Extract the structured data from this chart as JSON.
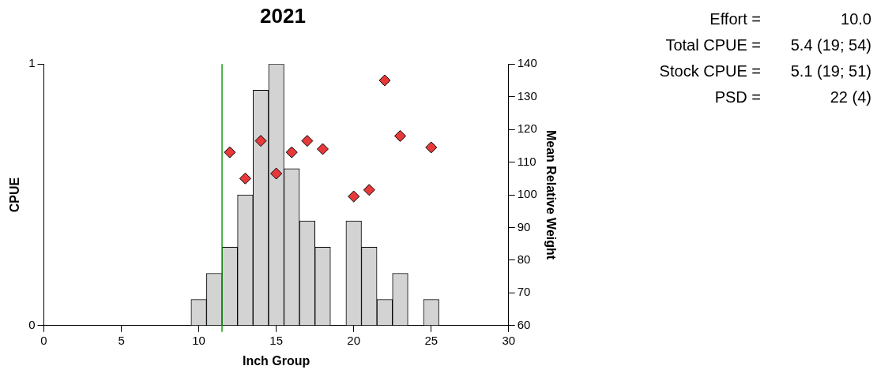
{
  "chart_data": {
    "type": "histogram",
    "title": "2021",
    "xlabel": "Inch Group",
    "ylabel": "CPUE",
    "y2label": "Mean Relative Weight",
    "bins": [
      9.5,
      10.5,
      11.5,
      12.5,
      13.5,
      14.5,
      15.5,
      16.5,
      17.5,
      18.5,
      19.5,
      20.5,
      21.5,
      22.5,
      23.5,
      24.5,
      25.5
    ],
    "series": [
      {
        "color": "#d3d3d3",
        "values": [
          0.1,
          0.2,
          0.3,
          0.5,
          0.9,
          1.0,
          0.6,
          0.4,
          0.3,
          0,
          0.4,
          0.3,
          0.1,
          0.2,
          0,
          0.1
        ]
      },
      {
        "type": "scatter",
        "axis": "y2",
        "color": "#e8393a",
        "marker": "diamond",
        "x": [
          12,
          13,
          14,
          15,
          16,
          17,
          18,
          20,
          21,
          22,
          23,
          25
        ],
        "values": [
          113,
          105,
          116.5,
          106.5,
          113,
          116.5,
          114,
          99.5,
          101.5,
          135,
          118,
          114.5
        ]
      }
    ],
    "xlim": [
      0,
      30
    ],
    "xticks": [
      0,
      5,
      10,
      15,
      20,
      25,
      30
    ],
    "ylim": [
      0,
      1
    ],
    "yticks": [
      0,
      1
    ],
    "y2lim": [
      60,
      140
    ],
    "y2ticks": [
      60,
      70,
      80,
      90,
      100,
      110,
      120,
      130,
      140
    ],
    "ref_lines": [
      {
        "axis": "x",
        "value": 11.5,
        "color": "#1a9a1a"
      }
    ],
    "grid": false,
    "legend": false,
    "annotations": [
      "Effort = 10.0",
      "Total CPUE = 5.4 (19; 54)",
      "Stock CPUE = 5.1 (19; 51)",
      "PSD = 22 (4)"
    ]
  }
}
